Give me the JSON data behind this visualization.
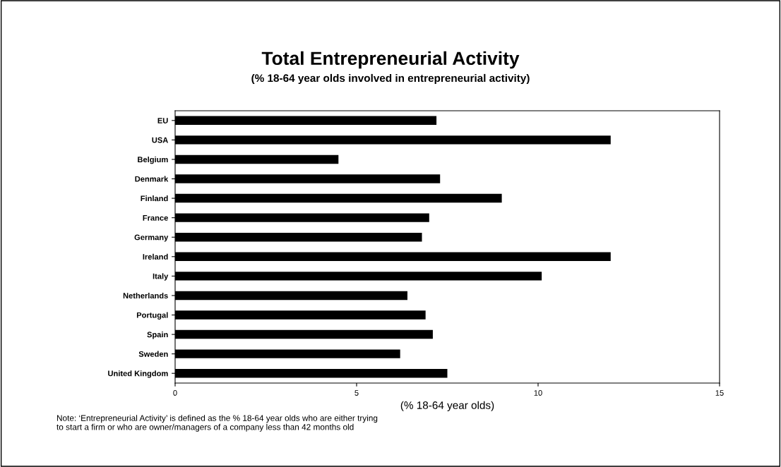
{
  "chart_data": {
    "type": "bar",
    "orientation": "horizontal",
    "title": "Total Entrepreneurial Activity",
    "subtitle": "(% 18-64 year olds involved in entrepreneurial activity)",
    "xlabel": "(% 18-64 year olds)",
    "categories": [
      "EU",
      "USA",
      "Belgium",
      "Denmark",
      "Finland",
      "France",
      "Germany",
      "Ireland",
      "Italy",
      "Netherlands",
      "Portugal",
      "Spain",
      "Sweden",
      "United Kingdom"
    ],
    "values": [
      7.2,
      12.0,
      4.5,
      7.3,
      9.0,
      7.0,
      6.8,
      12.0,
      10.1,
      6.4,
      6.9,
      7.1,
      6.2,
      7.5
    ],
    "color": "#000000",
    "xlim": [
      0,
      15
    ],
    "xticks": [
      0,
      5,
      10,
      15
    ],
    "grid": false,
    "legend": false,
    "annotations": [
      "Note: ‘Entrepreneurial Activity’ is defined as the % 18-64 year olds who are either trying\nto start a firm or who are owner/managers of a company less than 42 months old"
    ]
  }
}
